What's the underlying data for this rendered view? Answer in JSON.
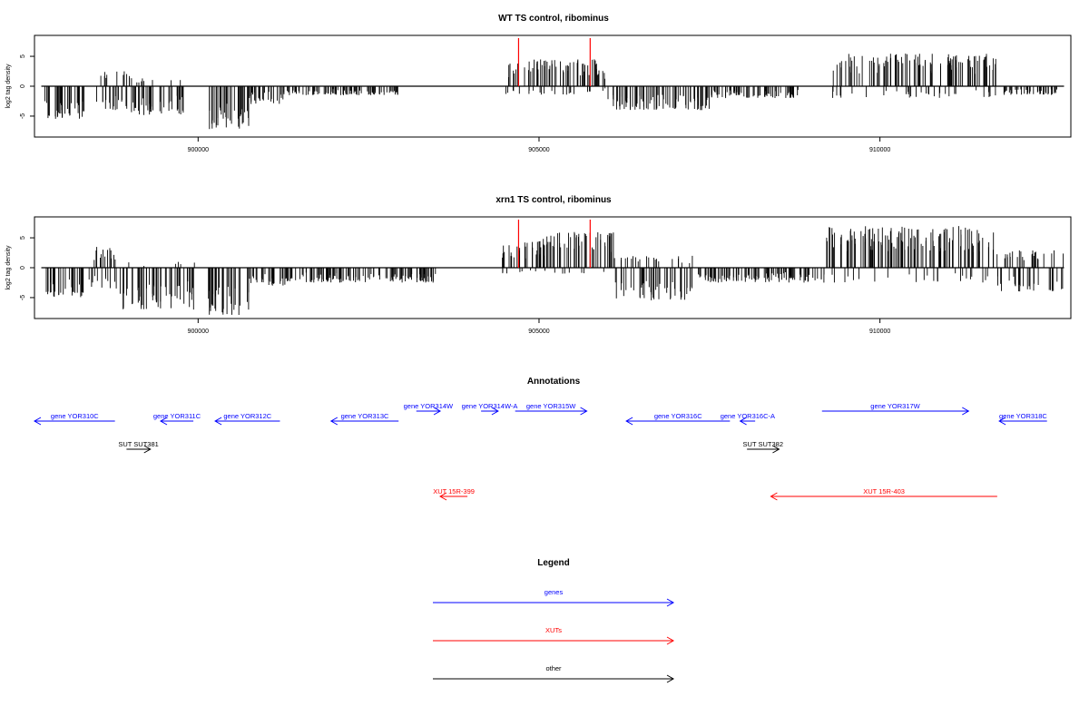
{
  "colors": {
    "genes": "#0000ff",
    "xuts": "#ff0000",
    "other": "#000000",
    "marker": "#ff0000"
  },
  "chart_data": [
    {
      "type": "bar",
      "title": "WT TS control, ribominus",
      "ylabel": "log2 tag density",
      "xlim": [
        897600,
        912800
      ],
      "ylim": [
        -8.5,
        8.5
      ],
      "x_ticks": [
        900000,
        905000,
        910000
      ],
      "y_ticks": [
        -5,
        0,
        5
      ],
      "x_tick_labels": [
        "900000",
        "905000",
        "910000"
      ],
      "y_tick_labels": [
        "-5",
        "0",
        "5"
      ],
      "marker_lines": [
        904700,
        905750
      ],
      "signal_regions": [
        {
          "start": 897750,
          "end": 898350,
          "min": -5.5,
          "max": 0
        },
        {
          "start": 898500,
          "end": 899000,
          "min": -4.0,
          "max": 2.5
        },
        {
          "start": 899000,
          "end": 899800,
          "min": -5.0,
          "max": 1.5
        },
        {
          "start": 900150,
          "end": 900750,
          "min": -7.5,
          "max": 0
        },
        {
          "start": 900750,
          "end": 901250,
          "min": -3.0,
          "max": 0
        },
        {
          "start": 901250,
          "end": 903000,
          "min": -1.5,
          "max": 0
        },
        {
          "start": 904450,
          "end": 905850,
          "min": -1.5,
          "max": 4.5
        },
        {
          "start": 905850,
          "end": 906000,
          "min": -1.0,
          "max": 3.0
        },
        {
          "start": 906000,
          "end": 907500,
          "min": -4.0,
          "max": 0
        },
        {
          "start": 907500,
          "end": 908800,
          "min": -2.0,
          "max": 0
        },
        {
          "start": 909300,
          "end": 911700,
          "min": -2.0,
          "max": 5.5
        },
        {
          "start": 911800,
          "end": 912600,
          "min": -1.5,
          "max": 0
        }
      ]
    },
    {
      "type": "bar",
      "title": "xrn1 TS control, ribominus",
      "ylabel": "log2 tag density",
      "xlim": [
        897600,
        912800
      ],
      "ylim": [
        -8.5,
        8.5
      ],
      "x_ticks": [
        900000,
        905000,
        910000
      ],
      "y_ticks": [
        -5,
        0,
        5
      ],
      "x_tick_labels": [
        "900000",
        "905000",
        "910000"
      ],
      "y_tick_labels": [
        "-5",
        "0",
        "5"
      ],
      "marker_lines": [
        904700,
        905750
      ],
      "signal_regions": [
        {
          "start": 897750,
          "end": 898350,
          "min": -5.0,
          "max": 0
        },
        {
          "start": 898400,
          "end": 898850,
          "min": -3.5,
          "max": 3.5
        },
        {
          "start": 898850,
          "end": 899950,
          "min": -7.0,
          "max": 1.0
        },
        {
          "start": 900150,
          "end": 900750,
          "min": -8.0,
          "max": 0
        },
        {
          "start": 900750,
          "end": 901350,
          "min": -3.0,
          "max": 0
        },
        {
          "start": 901350,
          "end": 903500,
          "min": -2.5,
          "max": 0
        },
        {
          "start": 904450,
          "end": 905050,
          "min": -1.0,
          "max": 4.5
        },
        {
          "start": 905050,
          "end": 906100,
          "min": -1.0,
          "max": 6.0
        },
        {
          "start": 906100,
          "end": 907300,
          "min": -5.5,
          "max": 2.0
        },
        {
          "start": 907300,
          "end": 909200,
          "min": -2.5,
          "max": 0
        },
        {
          "start": 909200,
          "end": 911700,
          "min": -2.5,
          "max": 7.0
        },
        {
          "start": 911700,
          "end": 912700,
          "min": -4.0,
          "max": 3.0
        }
      ]
    }
  ],
  "annotations": {
    "title": "Annotations",
    "features": [
      {
        "label": "gene YOR310C",
        "kind": "genes",
        "strand": "-",
        "start": 897600,
        "end": 898780,
        "row": 1
      },
      {
        "label": "gene YOR311C",
        "kind": "genes",
        "strand": "-",
        "start": 899450,
        "end": 899930,
        "row": 1
      },
      {
        "label": "gene YOR312C",
        "kind": "genes",
        "strand": "-",
        "start": 900250,
        "end": 901200,
        "row": 1
      },
      {
        "label": "gene YOR313C",
        "kind": "genes",
        "strand": "-",
        "start": 901950,
        "end": 902940,
        "row": 1
      },
      {
        "label": "gene YOR314W",
        "kind": "genes",
        "strand": "+",
        "start": 903200,
        "end": 903550,
        "row": 0
      },
      {
        "label": "gene YOR314W-A",
        "kind": "genes",
        "strand": "+",
        "start": 904150,
        "end": 904400,
        "row": 0
      },
      {
        "label": "gene YOR315W",
        "kind": "genes",
        "strand": "+",
        "start": 904650,
        "end": 905700,
        "row": 0
      },
      {
        "label": "gene YOR316C",
        "kind": "genes",
        "strand": "-",
        "start": 906280,
        "end": 907800,
        "row": 1
      },
      {
        "label": "gene YOR316C-A",
        "kind": "genes",
        "strand": "-",
        "start": 907950,
        "end": 908170,
        "row": 1
      },
      {
        "label": "gene YOR317W",
        "kind": "genes",
        "strand": "+",
        "start": 909150,
        "end": 911300,
        "row": 0
      },
      {
        "label": "gene YOR318C",
        "kind": "genes",
        "strand": "-",
        "start": 911750,
        "end": 912450,
        "row": 1
      },
      {
        "label": "SUT SUT381",
        "kind": "other",
        "strand": "+",
        "start": 898950,
        "end": 899300,
        "row": 2
      },
      {
        "label": "SUT SUT382",
        "kind": "other",
        "strand": "+",
        "start": 908050,
        "end": 908520,
        "row": 2
      },
      {
        "label": "XUT 15R-399",
        "kind": "xuts",
        "strand": "-",
        "start": 903550,
        "end": 903950,
        "row": 3
      },
      {
        "label": "XUT 15R-403",
        "kind": "xuts",
        "strand": "-",
        "start": 908400,
        "end": 911720,
        "row": 3
      }
    ]
  },
  "legend": {
    "title": "Legend",
    "items": [
      {
        "label": "genes",
        "kind": "genes"
      },
      {
        "label": "XUTs",
        "kind": "xuts"
      },
      {
        "label": "other",
        "kind": "other"
      }
    ]
  }
}
